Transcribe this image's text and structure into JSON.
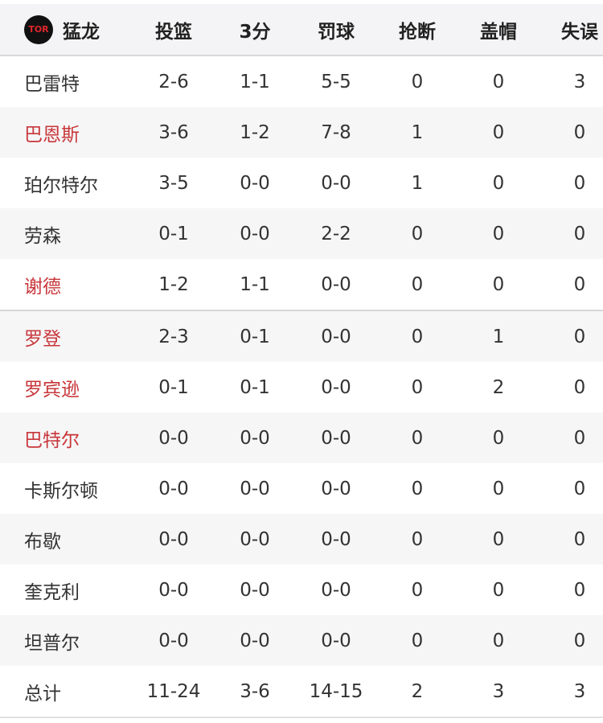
{
  "header": {
    "team": "猛龙",
    "logo_text": "TOR",
    "columns": [
      "投篮",
      "3分",
      "罚球",
      "抢断",
      "盖帽",
      "失误"
    ]
  },
  "colors": {
    "highlight": "#c8363a",
    "text": "#333333"
  },
  "rows": [
    {
      "name": "巴雷特",
      "red": false,
      "stats": [
        "2-6",
        "1-1",
        "5-5",
        "0",
        "0",
        "3"
      ]
    },
    {
      "name": "巴恩斯",
      "red": true,
      "stats": [
        "3-6",
        "1-2",
        "7-8",
        "1",
        "0",
        "0"
      ]
    },
    {
      "name": "珀尔特尔",
      "red": false,
      "stats": [
        "3-5",
        "0-0",
        "0-0",
        "1",
        "0",
        "0"
      ]
    },
    {
      "name": "劳森",
      "red": false,
      "stats": [
        "0-1",
        "0-0",
        "2-2",
        "0",
        "0",
        "0"
      ]
    },
    {
      "name": "谢德",
      "red": true,
      "stats": [
        "1-2",
        "1-1",
        "0-0",
        "0",
        "0",
        "0"
      ]
    },
    {
      "name": "罗登",
      "red": true,
      "stats": [
        "2-3",
        "0-1",
        "0-0",
        "0",
        "1",
        "0"
      ]
    },
    {
      "name": "罗宾逊",
      "red": true,
      "stats": [
        "0-1",
        "0-1",
        "0-0",
        "0",
        "2",
        "0"
      ]
    },
    {
      "name": "巴特尔",
      "red": true,
      "stats": [
        "0-0",
        "0-0",
        "0-0",
        "0",
        "0",
        "0"
      ]
    },
    {
      "name": "卡斯尔顿",
      "red": false,
      "stats": [
        "0-0",
        "0-0",
        "0-0",
        "0",
        "0",
        "0"
      ]
    },
    {
      "name": "布歇",
      "red": false,
      "stats": [
        "0-0",
        "0-0",
        "0-0",
        "0",
        "0",
        "0"
      ]
    },
    {
      "name": "奎克利",
      "red": false,
      "stats": [
        "0-0",
        "0-0",
        "0-0",
        "0",
        "0",
        "0"
      ]
    },
    {
      "name": "坦普尔",
      "red": false,
      "stats": [
        "0-0",
        "0-0",
        "0-0",
        "0",
        "0",
        "0"
      ]
    },
    {
      "name": "总计",
      "red": false,
      "stats": [
        "11-24",
        "3-6",
        "14-15",
        "2",
        "3",
        "3"
      ]
    }
  ]
}
